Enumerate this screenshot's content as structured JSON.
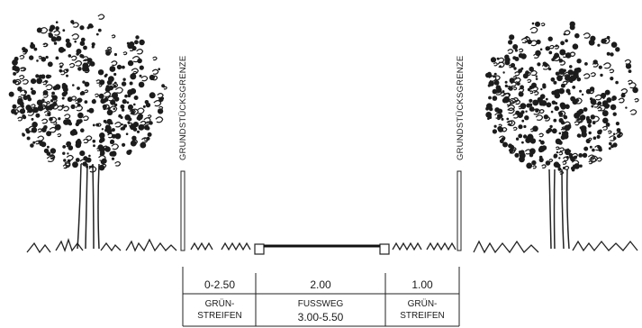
{
  "boundary_labels": {
    "left": "GRUNDSTÜCKSGRENZE",
    "right": "GRUNDSTÜCKSGRENZE"
  },
  "table": {
    "widths": [
      "0-2.50",
      "2.00",
      "1.00"
    ],
    "left_label_line1": "GRÜN-",
    "left_label_line2": "STREIFEN",
    "middle_label_line1": "FUSSWEG",
    "middle_label_line2": "3.00-5.50",
    "right_label_line1": "GRÜN-",
    "right_label_line2": "STREIFEN"
  }
}
